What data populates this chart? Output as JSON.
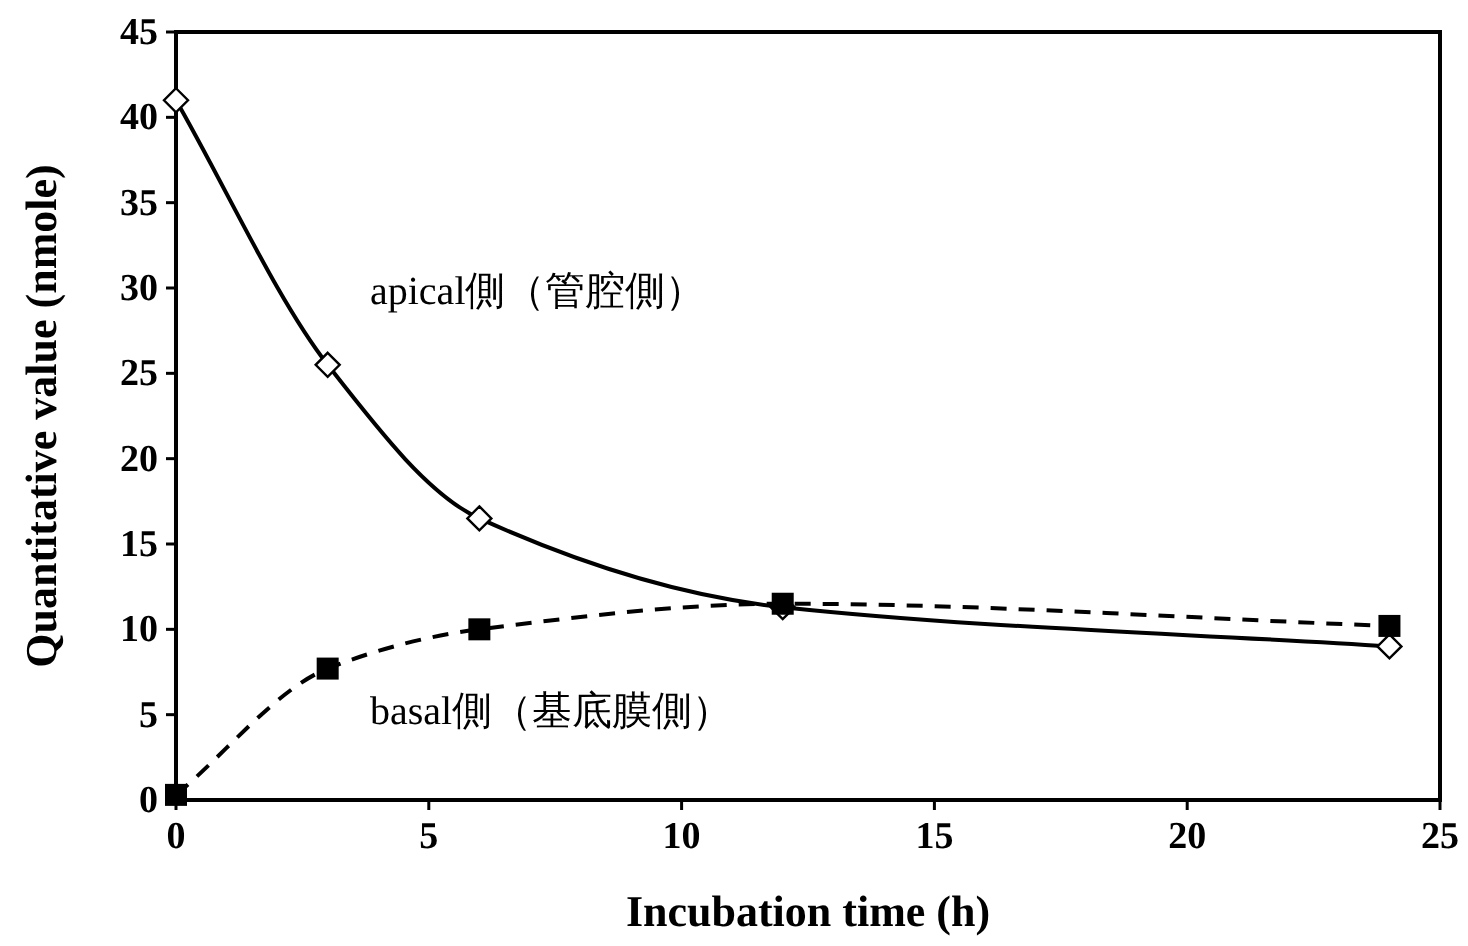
{
  "chart_data": {
    "type": "line",
    "xlabel": "Incubation time (h)",
    "ylabel": "Quantitative value (nmole)",
    "xlim": [
      0,
      25
    ],
    "ylim": [
      0,
      45
    ],
    "xticks": [
      0,
      5,
      10,
      15,
      20,
      25
    ],
    "yticks": [
      0,
      5,
      10,
      15,
      20,
      25,
      30,
      35,
      40,
      45
    ],
    "grid": false,
    "x": [
      0,
      3,
      6,
      12,
      24
    ],
    "series": [
      {
        "name": "apical側（管腔側）",
        "color": "#000000",
        "marker": "diamond",
        "line_style": "solid",
        "values": [
          41,
          25.5,
          16.5,
          11.3,
          9
        ]
      },
      {
        "name": "basal側（基底膜側）",
        "color": "#000000",
        "marker": "square",
        "line_style": "dashed",
        "values": [
          0.3,
          7.7,
          10,
          11.5,
          10.2
        ]
      }
    ]
  }
}
